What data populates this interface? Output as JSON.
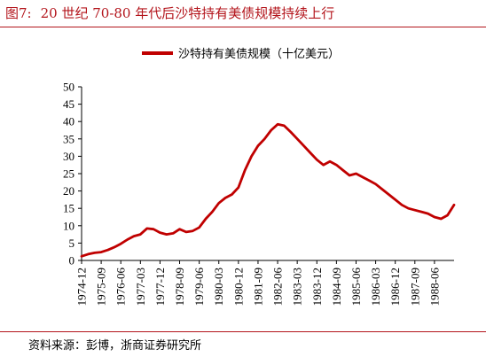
{
  "title_prefix": "图7:",
  "title_text": "20 世纪 70-80 年代后沙特持有美债规模持续上行",
  "source": "资料来源：彭博，浙商证券研究所",
  "colors": {
    "accent": "#b3141b",
    "series": "#c00000"
  },
  "chart_data": {
    "type": "line",
    "title": "",
    "xlabel": "",
    "ylabel": "",
    "ylim": [
      0,
      50
    ],
    "yticks": [
      0,
      5,
      10,
      15,
      20,
      25,
      30,
      35,
      40,
      45,
      50
    ],
    "grid": false,
    "legend_position": "top-center",
    "xticks": [
      "1974-12",
      "1975-09",
      "1976-06",
      "1977-03",
      "1977-12",
      "1978-09",
      "1979-06",
      "1980-03",
      "1980-12",
      "1981-09",
      "1982-06",
      "1983-03",
      "1983-12",
      "1984-09",
      "1985-06",
      "1986-03",
      "1986-12",
      "1987-09",
      "1988-06"
    ],
    "series": [
      {
        "name": "沙特持有美债规模（十亿美元）",
        "x": [
          "1974-12",
          "1975-03",
          "1975-06",
          "1975-09",
          "1975-12",
          "1976-03",
          "1976-06",
          "1976-09",
          "1976-12",
          "1977-03",
          "1977-06",
          "1977-09",
          "1977-12",
          "1978-03",
          "1978-06",
          "1978-09",
          "1978-12",
          "1979-03",
          "1979-06",
          "1979-09",
          "1979-12",
          "1980-03",
          "1980-06",
          "1980-09",
          "1980-12",
          "1981-03",
          "1981-06",
          "1981-09",
          "1981-12",
          "1982-03",
          "1982-06",
          "1982-09",
          "1982-12",
          "1983-03",
          "1983-06",
          "1983-09",
          "1983-12",
          "1984-03",
          "1984-06",
          "1984-09",
          "1984-12",
          "1985-03",
          "1985-06",
          "1985-09",
          "1985-12",
          "1986-03",
          "1986-06",
          "1986-09",
          "1986-12",
          "1987-03",
          "1987-06",
          "1987-09",
          "1987-12",
          "1988-03",
          "1988-06",
          "1988-09",
          "1988-12",
          "1989-03"
        ],
        "values": [
          1.2,
          1.8,
          2.2,
          2.4,
          3.0,
          3.8,
          4.8,
          6.0,
          7.0,
          7.5,
          9.2,
          9.0,
          8.0,
          7.5,
          7.8,
          9.0,
          8.2,
          8.5,
          9.5,
          12.0,
          14.0,
          16.5,
          18.0,
          19.0,
          21.0,
          26.0,
          30.0,
          33.0,
          35.0,
          37.5,
          39.2,
          38.8,
          37.0,
          35.0,
          33.0,
          31.0,
          29.0,
          27.5,
          28.5,
          27.5,
          26.0,
          24.5,
          25.0,
          24.0,
          23.0,
          22.0,
          20.5,
          19.0,
          17.5,
          16.0,
          15.0,
          14.5,
          14.0,
          13.5,
          12.5,
          12.0,
          13.0,
          16.0
        ]
      }
    ]
  }
}
